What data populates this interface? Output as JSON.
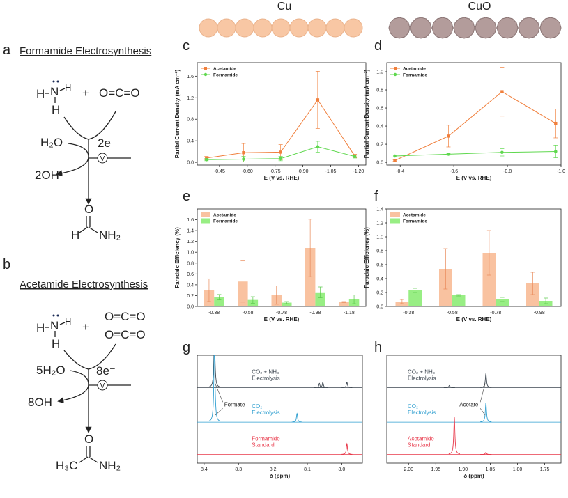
{
  "scheme": {
    "a": {
      "label": "a",
      "title": "Formamide Electrosynthesis",
      "n": "N",
      "h": "H",
      "plus": "+",
      "co2": "O=C=O",
      "water": "H₂O",
      "electrons": "2e⁻",
      "v": "V",
      "hydroxide": "2OH⁻",
      "o": "O",
      "product_left": "H",
      "product_right": "NH₂"
    },
    "b": {
      "label": "b",
      "title": "Acetamide Electrosynthesis",
      "n": "N",
      "h": "H",
      "plus": "+",
      "co2": "O=C=O",
      "water": "5H₂O",
      "electrons": "8e⁻",
      "v": "V",
      "hydroxide": "8OH⁻",
      "o": "O",
      "product_left": "H₃C",
      "product_right": "NH₂"
    }
  },
  "catalysts": [
    "Cu",
    "CuO"
  ],
  "chart_data": [
    {
      "type": "line",
      "panel_label": "c",
      "xlabel": "E (V vs. RHE)",
      "ylabel": "Partial Current Density (mA cm⁻²)",
      "x": [
        -0.38,
        -0.58,
        -0.78,
        -0.98,
        -1.18
      ],
      "xlim": [
        -0.33,
        -1.24
      ],
      "xticks": [
        -0.45,
        {
          "value": -0.6,
          "label": "-0.60"
        },
        -0.75,
        {
          "value": -0.9,
          "label": "-0.90"
        },
        -1.05,
        {
          "value": -1.2,
          "label": "-1.20"
        }
      ],
      "ylim": [
        -0.05,
        1.85
      ],
      "yticks": [
        {
          "value": 0,
          "label": "0.0"
        },
        0.4,
        0.8,
        1.2,
        1.6
      ],
      "legend": "upper left",
      "series": [
        {
          "name": "Acetamide",
          "color": "#f07f3c",
          "marker": "square",
          "values": [
            0.08,
            0.18,
            0.19,
            1.16,
            0.12
          ],
          "errors": [
            0.03,
            0.17,
            0.14,
            0.53,
            0.03
          ]
        },
        {
          "name": "Formamide",
          "color": "#5fd84e",
          "marker": "circle",
          "values": [
            0.05,
            0.06,
            0.07,
            0.29,
            0.11
          ],
          "errors": [
            0.02,
            0.05,
            0.04,
            0.1,
            0.03
          ]
        }
      ]
    },
    {
      "type": "line",
      "panel_label": "d",
      "xlabel": "E (V vs. RHE)",
      "ylabel": "Partial Current Density (mA cm⁻²)",
      "x": [
        -0.38,
        -0.58,
        -0.78,
        -0.98
      ],
      "xlim": [
        -0.35,
        -1.0
      ],
      "xticks": [
        -0.4,
        -0.6,
        -0.8,
        {
          "value": -1.0,
          "label": "-1.0"
        }
      ],
      "ylim": [
        -0.03,
        1.1
      ],
      "yticks": [
        {
          "value": 0,
          "label": "0.0"
        },
        0.2,
        0.4,
        0.6,
        0.8,
        {
          "value": 1.0,
          "label": "1.0"
        }
      ],
      "legend": "upper left",
      "series": [
        {
          "name": "Acetamide",
          "color": "#f07f3c",
          "marker": "square",
          "values": [
            0.02,
            0.29,
            0.78,
            0.43
          ],
          "errors": [
            0.01,
            0.12,
            0.27,
            0.16
          ]
        },
        {
          "name": "Formamide",
          "color": "#5fd84e",
          "marker": "circle",
          "values": [
            0.07,
            0.09,
            0.11,
            0.12
          ],
          "errors": [
            0.01,
            0.01,
            0.04,
            0.07
          ]
        }
      ]
    },
    {
      "type": "bar",
      "panel_label": "e",
      "xlabel": "E (V vs. RHE)",
      "ylabel": "Faradaic Efficiency (%)",
      "categories": [
        "-0.38",
        "-0.58",
        "-0.78",
        "-0.98",
        "-1.18"
      ],
      "ylim": [
        0,
        1.8
      ],
      "yticks": [
        {
          "value": 0,
          "label": "0.0"
        },
        0.2,
        0.4,
        0.6,
        0.8,
        {
          "value": 1.0,
          "label": "1.0"
        },
        1.2,
        1.4,
        1.6
      ],
      "legend": "upper left",
      "series": [
        {
          "name": "Acetamide",
          "color": "#f9c2a0",
          "error_color": "#e88a5a",
          "values": [
            0.3,
            0.46,
            0.21,
            1.08,
            0.08
          ],
          "errors": [
            0.21,
            0.38,
            0.17,
            0.53,
            0.01
          ]
        },
        {
          "name": "Formamide",
          "color": "#98ee84",
          "error_color": "#58c848",
          "values": [
            0.17,
            0.12,
            0.07,
            0.26,
            0.13
          ],
          "errors": [
            0.05,
            0.06,
            0.02,
            0.1,
            0.08
          ]
        }
      ]
    },
    {
      "type": "bar",
      "panel_label": "f",
      "xlabel": "E (V vs. RHE)",
      "ylabel": "Faradaic Efficiency (%)",
      "categories": [
        "-0.38",
        "-0.58",
        "-0.78",
        "-0.98"
      ],
      "ylim": [
        0,
        1.4
      ],
      "yticks": [
        {
          "value": 0,
          "label": "0.0"
        },
        0.2,
        0.4,
        0.6,
        0.8,
        {
          "value": 1.0,
          "label": "1.0"
        },
        1.2,
        1.4
      ],
      "legend": "upper left",
      "series": [
        {
          "name": "Acetamide",
          "color": "#f9c2a0",
          "error_color": "#e88a5a",
          "values": [
            0.07,
            0.54,
            0.77,
            0.33
          ],
          "errors": [
            0.03,
            0.29,
            0.32,
            0.16
          ]
        },
        {
          "name": "Formamide",
          "color": "#98ee84",
          "error_color": "#58c848",
          "values": [
            0.23,
            0.16,
            0.1,
            0.08
          ],
          "errors": [
            0.03,
            0.01,
            0.03,
            0.04
          ]
        }
      ]
    },
    {
      "type": "spectrum",
      "panel_label": "g",
      "xlabel": "δ (ppm)",
      "xlim": [
        8.42,
        7.94
      ],
      "xticks": [
        8.4,
        8.3,
        8.2,
        8.1,
        {
          "value": 8.0,
          "label": "8.0"
        }
      ],
      "annotation": {
        "text": "Formate",
        "x": 8.37
      },
      "traces": [
        {
          "label_lines": [
            "CO₂ + NH₃",
            "Electrolysis"
          ],
          "color": "#3c4650",
          "peaks": [
            {
              "x": 8.37,
              "height": 0.5
            },
            {
              "x": 8.065,
              "height": 0.04
            },
            {
              "x": 8.055,
              "height": 0.05
            },
            {
              "x": 7.985,
              "height": 0.05
            }
          ]
        },
        {
          "label_lines": [
            "CO₂",
            "Electrolysis"
          ],
          "color": "#2f9fd0",
          "peaks": [
            {
              "x": 8.37,
              "height": 0.75
            },
            {
              "x": 8.13,
              "height": 0.08
            }
          ]
        },
        {
          "label_lines": [
            "Formamide",
            "Standard"
          ],
          "color": "#e8384a",
          "peaks": [
            {
              "x": 7.985,
              "height": 0.1
            }
          ]
        }
      ]
    },
    {
      "type": "spectrum",
      "panel_label": "h",
      "xlabel": "δ (ppm)",
      "xlim": [
        2.04,
        1.72
      ],
      "xticks": [
        {
          "value": 2.0,
          "label": "2.00"
        },
        1.95,
        {
          "value": 1.9,
          "label": "1.90"
        },
        1.85,
        {
          "value": 1.8,
          "label": "1.80"
        },
        1.75
      ],
      "annotation": {
        "text": "Acetate",
        "x": 1.858
      },
      "traces": [
        {
          "label_lines": [
            "CO₂ + NH₃",
            "Electrolysis"
          ],
          "color": "#3c4650",
          "peaks": [
            {
              "x": 1.925,
              "height": 0.02
            },
            {
              "x": 1.858,
              "height": 0.13
            }
          ]
        },
        {
          "label_lines": [
            "CO₂",
            "Electrolysis"
          ],
          "color": "#2f9fd0",
          "peaks": [
            {
              "x": 1.858,
              "height": 0.18
            }
          ]
        },
        {
          "label_lines": [
            "Acetamide",
            "Standard"
          ],
          "color": "#e8384a",
          "peaks": [
            {
              "x": 1.916,
              "height": 0.35
            },
            {
              "x": 1.858,
              "height": 0.02
            }
          ]
        }
      ]
    }
  ]
}
